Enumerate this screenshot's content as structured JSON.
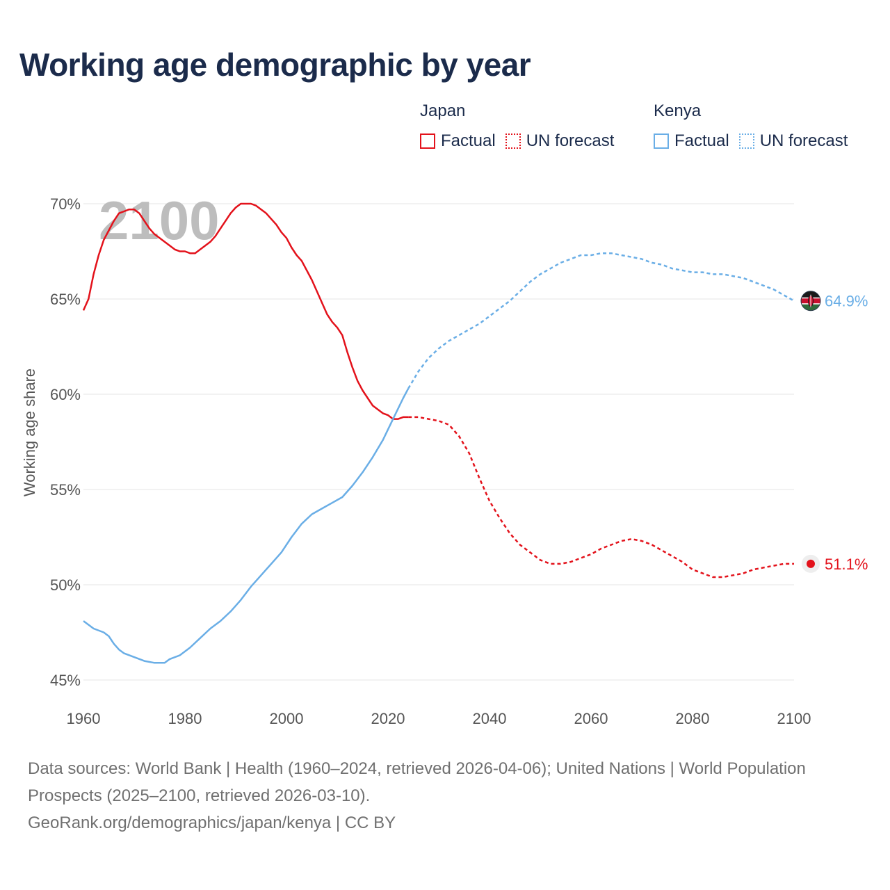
{
  "title": "Working age demographic by year",
  "legend": {
    "groups": [
      {
        "country": "Japan",
        "items": [
          "Factual",
          "UN forecast"
        ]
      },
      {
        "country": "Kenya",
        "items": [
          "Factual",
          "UN forecast"
        ]
      }
    ]
  },
  "footer": {
    "line1": "Data sources: World Bank | Health (1960–2024, retrieved 2026-04-06); United Nations | World Population Prospects (2025–2100, retrieved 2026-03-10).",
    "line2": "GeoRank.org/demographics/japan/kenya | CC BY"
  },
  "colors": {
    "japan": "#e3121b",
    "kenya": "#6aaee6",
    "title": "#1b2b4b",
    "grid": "#e6e6e6"
  },
  "chart_data": {
    "type": "line",
    "title": "Working age demographic by year",
    "xlabel": "",
    "ylabel": "Working age share",
    "xlim": [
      1960,
      2100
    ],
    "ylim": [
      45,
      70
    ],
    "x_ticks": [
      1960,
      1980,
      2000,
      2020,
      2040,
      2060,
      2080,
      2100
    ],
    "x_tick_labels": [
      "1960",
      "1980",
      "2000",
      "2020",
      "2040",
      "2060",
      "2080",
      "2100"
    ],
    "y_ticks": [
      45,
      50,
      55,
      60,
      65,
      70
    ],
    "y_tick_labels": [
      "45%",
      "50%",
      "55%",
      "60%",
      "65%",
      "70%"
    ],
    "year_watermark": "2100",
    "factual_until": 2024,
    "end_labels": {
      "japan": "51.1%",
      "kenya": "64.9%"
    },
    "series": [
      {
        "name": "Japan",
        "points": [
          [
            1960,
            64.4
          ],
          [
            1961,
            65.0
          ],
          [
            1962,
            66.3
          ],
          [
            1963,
            67.3
          ],
          [
            1964,
            68.1
          ],
          [
            1965,
            68.6
          ],
          [
            1966,
            69.1
          ],
          [
            1967,
            69.5
          ],
          [
            1968,
            69.6
          ],
          [
            1969,
            69.7
          ],
          [
            1970,
            69.7
          ],
          [
            1971,
            69.5
          ],
          [
            1972,
            69.1
          ],
          [
            1973,
            68.7
          ],
          [
            1974,
            68.4
          ],
          [
            1975,
            68.2
          ],
          [
            1976,
            68.0
          ],
          [
            1977,
            67.8
          ],
          [
            1978,
            67.6
          ],
          [
            1979,
            67.5
          ],
          [
            1980,
            67.5
          ],
          [
            1981,
            67.4
          ],
          [
            1982,
            67.4
          ],
          [
            1983,
            67.6
          ],
          [
            1984,
            67.8
          ],
          [
            1985,
            68.0
          ],
          [
            1986,
            68.3
          ],
          [
            1987,
            68.7
          ],
          [
            1988,
            69.1
          ],
          [
            1989,
            69.5
          ],
          [
            1990,
            69.8
          ],
          [
            1991,
            70.0
          ],
          [
            1992,
            70.0
          ],
          [
            1993,
            70.0
          ],
          [
            1994,
            69.9
          ],
          [
            1995,
            69.7
          ],
          [
            1996,
            69.5
          ],
          [
            1997,
            69.2
          ],
          [
            1998,
            68.9
          ],
          [
            1999,
            68.5
          ],
          [
            2000,
            68.2
          ],
          [
            2001,
            67.7
          ],
          [
            2002,
            67.3
          ],
          [
            2003,
            67.0
          ],
          [
            2004,
            66.5
          ],
          [
            2005,
            66.0
          ],
          [
            2006,
            65.4
          ],
          [
            2007,
            64.8
          ],
          [
            2008,
            64.2
          ],
          [
            2009,
            63.8
          ],
          [
            2010,
            63.5
          ],
          [
            2011,
            63.1
          ],
          [
            2012,
            62.2
          ],
          [
            2013,
            61.4
          ],
          [
            2014,
            60.7
          ],
          [
            2015,
            60.2
          ],
          [
            2016,
            59.8
          ],
          [
            2017,
            59.4
          ],
          [
            2018,
            59.2
          ],
          [
            2019,
            59.0
          ],
          [
            2020,
            58.9
          ],
          [
            2021,
            58.7
          ],
          [
            2022,
            58.7
          ],
          [
            2023,
            58.8
          ],
          [
            2024,
            58.8
          ],
          [
            2026,
            58.8
          ],
          [
            2028,
            58.7
          ],
          [
            2030,
            58.6
          ],
          [
            2032,
            58.4
          ],
          [
            2034,
            57.8
          ],
          [
            2036,
            56.9
          ],
          [
            2038,
            55.6
          ],
          [
            2040,
            54.4
          ],
          [
            2042,
            53.5
          ],
          [
            2044,
            52.7
          ],
          [
            2046,
            52.1
          ],
          [
            2048,
            51.7
          ],
          [
            2050,
            51.3
          ],
          [
            2052,
            51.1
          ],
          [
            2054,
            51.1
          ],
          [
            2056,
            51.2
          ],
          [
            2058,
            51.4
          ],
          [
            2060,
            51.6
          ],
          [
            2062,
            51.9
          ],
          [
            2064,
            52.1
          ],
          [
            2066,
            52.3
          ],
          [
            2068,
            52.4
          ],
          [
            2070,
            52.3
          ],
          [
            2072,
            52.1
          ],
          [
            2074,
            51.8
          ],
          [
            2076,
            51.5
          ],
          [
            2078,
            51.2
          ],
          [
            2080,
            50.8
          ],
          [
            2082,
            50.6
          ],
          [
            2084,
            50.4
          ],
          [
            2086,
            50.4
          ],
          [
            2088,
            50.5
          ],
          [
            2090,
            50.6
          ],
          [
            2092,
            50.8
          ],
          [
            2094,
            50.9
          ],
          [
            2096,
            51.0
          ],
          [
            2098,
            51.1
          ],
          [
            2100,
            51.1
          ]
        ]
      },
      {
        "name": "Kenya",
        "points": [
          [
            1960,
            48.1
          ],
          [
            1962,
            47.7
          ],
          [
            1964,
            47.5
          ],
          [
            1965,
            47.3
          ],
          [
            1966,
            46.9
          ],
          [
            1967,
            46.6
          ],
          [
            1968,
            46.4
          ],
          [
            1970,
            46.2
          ],
          [
            1972,
            46.0
          ],
          [
            1974,
            45.9
          ],
          [
            1976,
            45.9
          ],
          [
            1977,
            46.1
          ],
          [
            1979,
            46.3
          ],
          [
            1981,
            46.7
          ],
          [
            1983,
            47.2
          ],
          [
            1985,
            47.7
          ],
          [
            1987,
            48.1
          ],
          [
            1989,
            48.6
          ],
          [
            1991,
            49.2
          ],
          [
            1993,
            49.9
          ],
          [
            1995,
            50.5
          ],
          [
            1997,
            51.1
          ],
          [
            1999,
            51.7
          ],
          [
            2001,
            52.5
          ],
          [
            2003,
            53.2
          ],
          [
            2005,
            53.7
          ],
          [
            2007,
            54.0
          ],
          [
            2009,
            54.3
          ],
          [
            2011,
            54.6
          ],
          [
            2013,
            55.2
          ],
          [
            2015,
            55.9
          ],
          [
            2017,
            56.7
          ],
          [
            2019,
            57.6
          ],
          [
            2021,
            58.7
          ],
          [
            2023,
            59.8
          ],
          [
            2024,
            60.3
          ],
          [
            2026,
            61.2
          ],
          [
            2028,
            61.9
          ],
          [
            2030,
            62.4
          ],
          [
            2032,
            62.8
          ],
          [
            2034,
            63.1
          ],
          [
            2036,
            63.4
          ],
          [
            2038,
            63.7
          ],
          [
            2040,
            64.1
          ],
          [
            2042,
            64.5
          ],
          [
            2044,
            64.9
          ],
          [
            2046,
            65.4
          ],
          [
            2048,
            65.9
          ],
          [
            2050,
            66.3
          ],
          [
            2052,
            66.6
          ],
          [
            2054,
            66.9
          ],
          [
            2056,
            67.1
          ],
          [
            2058,
            67.3
          ],
          [
            2060,
            67.3
          ],
          [
            2062,
            67.4
          ],
          [
            2064,
            67.4
          ],
          [
            2066,
            67.3
          ],
          [
            2068,
            67.2
          ],
          [
            2070,
            67.1
          ],
          [
            2072,
            66.9
          ],
          [
            2074,
            66.8
          ],
          [
            2076,
            66.6
          ],
          [
            2078,
            66.5
          ],
          [
            2080,
            66.4
          ],
          [
            2082,
            66.4
          ],
          [
            2084,
            66.3
          ],
          [
            2086,
            66.3
          ],
          [
            2088,
            66.2
          ],
          [
            2090,
            66.1
          ],
          [
            2092,
            65.9
          ],
          [
            2094,
            65.7
          ],
          [
            2096,
            65.5
          ],
          [
            2098,
            65.2
          ],
          [
            2100,
            64.9
          ]
        ]
      }
    ]
  }
}
